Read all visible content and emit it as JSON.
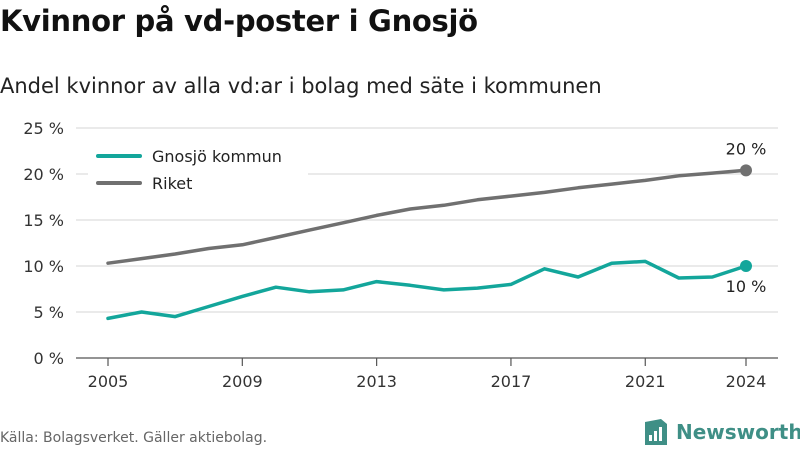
{
  "title": "Kvinnor på vd-poster i Gnosjö",
  "subtitle": "Andel kvinnor av alla vd:ar i bolag med säte i kommunen",
  "footer": {
    "source": "Källa: Bolagsverket. Gäller aktiebolag.",
    "brand": "Newsworthy"
  },
  "colors": {
    "gnosjo": "#13a69b",
    "riket": "#707070",
    "brand": "#3f8f86"
  },
  "icons": {
    "brand": "newsworthy-logo-icon"
  },
  "chart_data": {
    "type": "line",
    "x": [
      2005,
      2006,
      2007,
      2008,
      2009,
      2010,
      2011,
      2012,
      2013,
      2014,
      2015,
      2016,
      2017,
      2018,
      2019,
      2020,
      2021,
      2022,
      2023,
      2024
    ],
    "series": [
      {
        "name": "Gnosjö kommun",
        "color": "#13a69b",
        "values": [
          4.3,
          5.0,
          4.5,
          5.6,
          6.7,
          7.7,
          7.2,
          7.4,
          8.3,
          7.9,
          7.4,
          7.6,
          8.0,
          9.7,
          8.8,
          10.3,
          10.5,
          8.7,
          8.8,
          10.0
        ],
        "end_label": "10 %"
      },
      {
        "name": "Riket",
        "color": "#707070",
        "values": [
          10.3,
          10.8,
          11.3,
          11.9,
          12.3,
          13.1,
          13.9,
          14.7,
          15.5,
          16.2,
          16.6,
          17.2,
          17.6,
          18.0,
          18.5,
          18.9,
          19.3,
          19.8,
          20.1,
          20.4
        ],
        "end_label": "20 %"
      }
    ],
    "xticks": [
      2005,
      2009,
      2013,
      2017,
      2021,
      2024
    ],
    "xtick_labels": [
      "2005",
      "2009",
      "2013",
      "2017",
      "2021",
      "2024"
    ],
    "yticks": [
      0,
      5,
      10,
      15,
      20,
      25
    ],
    "ytick_labels": [
      "0 %",
      "5 %",
      "10 %",
      "15 %",
      "20 %",
      "25 %"
    ],
    "ylim": [
      0,
      25
    ],
    "xlim": [
      2005,
      2024
    ],
    "grid": true,
    "legend_position": "top-left"
  }
}
